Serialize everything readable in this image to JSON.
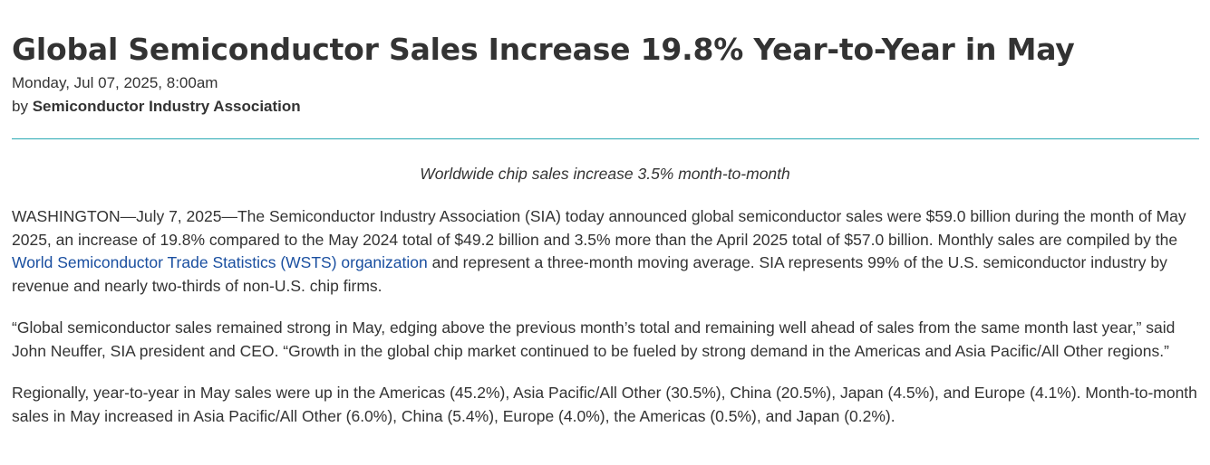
{
  "article": {
    "title": "Global Semiconductor Sales Increase 19.8% Year-to-Year in May",
    "date": "Monday, Jul 07, 2025, 8:00am",
    "byline_prefix": "by ",
    "author": "Semiconductor Industry Association",
    "subhead": "Worldwide chip sales increase 3.5% month-to-month",
    "paragraph1": {
      "text_before_link": "WASHINGTON—July 7, 2025—The Semiconductor Industry Association (SIA) today announced global semiconductor sales were $59.0 billion during the month of May 2025, an increase of 19.8% compared to the May 2024 total of $49.2 billion and 3.5% more than the April 2025 total of $57.0 billion. Monthly sales are compiled by the ",
      "link_text": "World Semiconductor Trade Statistics (WSTS) organization",
      "text_after_link": " and represent a three-month moving average. SIA represents 99% of the U.S. semiconductor industry by revenue and nearly two-thirds of non-U.S. chip firms."
    },
    "paragraph2": "“Global semiconductor sales remained strong in May, edging above the previous month’s total and remaining well ahead of sales from the same month last year,” said John Neuffer, SIA president and CEO. “Growth in the global chip market continued to be fueled by strong demand in the Americas and Asia Pacific/All Other regions.”",
    "paragraph3": "Regionally, year-to-year in May sales were up in the Americas (45.2%), Asia Pacific/All Other (30.5%), China (20.5%), Japan (4.5%), and Europe (4.1%). Month-to-month sales in May increased in Asia Pacific/All Other (6.0%), China (5.4%), Europe (4.0%), the Americas (0.5%), and Japan (0.2%)."
  },
  "colors": {
    "text": "#333333",
    "link": "#1a4fa0",
    "divider": "#2aa9b4"
  }
}
